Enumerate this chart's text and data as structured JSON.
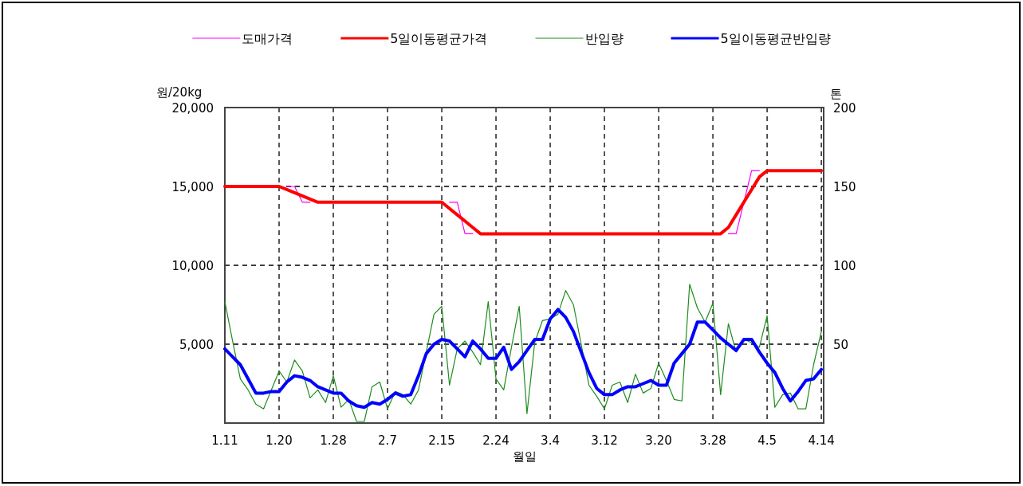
{
  "chart_data": {
    "type": "line",
    "xlabel": "월일",
    "ylabel": "원/20kg",
    "y2label": "톤",
    "categories": [
      "1.11",
      null,
      null,
      null,
      null,
      null,
      null,
      "1.20",
      null,
      null,
      null,
      null,
      null,
      null,
      "1.28",
      null,
      null,
      null,
      null,
      null,
      null,
      "2.7",
      null,
      null,
      null,
      null,
      null,
      null,
      "2.15",
      null,
      null,
      null,
      null,
      null,
      null,
      "2.24",
      null,
      null,
      null,
      null,
      null,
      null,
      "3.4",
      null,
      null,
      null,
      null,
      null,
      null,
      "3.12",
      null,
      null,
      null,
      null,
      null,
      null,
      "3.20",
      null,
      null,
      null,
      null,
      null,
      null,
      "3.28",
      null,
      null,
      null,
      null,
      null,
      null,
      "4.5",
      null,
      null,
      null,
      null,
      null,
      null,
      "4.14"
    ],
    "ylim": [
      0,
      20000
    ],
    "yticks": [
      {
        "value": 5000,
        "label": "5,000"
      },
      {
        "value": 10000,
        "label": "10,000"
      },
      {
        "value": 15000,
        "label": "15,000"
      },
      {
        "value": 20000,
        "label": "20,000"
      }
    ],
    "y2lim": [
      0,
      200
    ],
    "y2ticks": [
      50,
      100,
      150,
      200
    ],
    "grid": true,
    "legend": "top",
    "series": [
      {
        "name": "도매가격",
        "color": "#ff00ff",
        "values": [
          null,
          null,
          null,
          null,
          null,
          null,
          null,
          null,
          15000,
          15000,
          14000,
          14000,
          null,
          null,
          null,
          null,
          null,
          null,
          null,
          null,
          null,
          null,
          null,
          null,
          null,
          null,
          null,
          null,
          null,
          14000,
          14000,
          12000,
          12000,
          null,
          null,
          null,
          null,
          null,
          null,
          null,
          null,
          null,
          null,
          null,
          null,
          null,
          null,
          null,
          null,
          null,
          null,
          null,
          null,
          null,
          null,
          null,
          null,
          null,
          null,
          null,
          null,
          null,
          null,
          null,
          null,
          12000,
          12000,
          14000,
          16000,
          16000,
          null,
          null,
          null,
          null,
          null,
          null,
          null,
          null
        ]
      },
      {
        "name": "5일이동평균가격",
        "color": "#ff0000",
        "values": [
          15000,
          15000,
          15000,
          15000,
          15000,
          15000,
          15000,
          15000,
          14800,
          14600,
          14400,
          14200,
          14000,
          14000,
          14000,
          14000,
          14000,
          14000,
          14000,
          14000,
          14000,
          14000,
          14000,
          14000,
          14000,
          14000,
          14000,
          14000,
          14000,
          13600,
          13200,
          12800,
          12400,
          12000,
          12000,
          12000,
          12000,
          12000,
          12000,
          12000,
          12000,
          12000,
          12000,
          12000,
          12000,
          12000,
          12000,
          12000,
          12000,
          12000,
          12000,
          12000,
          12000,
          12000,
          12000,
          12000,
          12000,
          12000,
          12000,
          12000,
          12000,
          12000,
          12000,
          12000,
          12000,
          12400,
          13200,
          14000,
          14800,
          15600,
          16000,
          16000,
          16000,
          16000,
          16000,
          16000,
          16000,
          16000
        ]
      },
      {
        "name": "반입량",
        "color": "#1e8c1e",
        "axis": "y2",
        "values": [
          77,
          52,
          28,
          21,
          12,
          9,
          21,
          33,
          26,
          40,
          33,
          16,
          21,
          13,
          30,
          10,
          15,
          1,
          1,
          23,
          26,
          9,
          20,
          18,
          12,
          21,
          45,
          69,
          74,
          24,
          47,
          52,
          45,
          37,
          77,
          28,
          21,
          48,
          74,
          6,
          51,
          65,
          66,
          69,
          84,
          75,
          50,
          24,
          17,
          9,
          24,
          26,
          13,
          31,
          19,
          22,
          38,
          27,
          15,
          14,
          88,
          73,
          64,
          76,
          18,
          63,
          45,
          53,
          51,
          48,
          68,
          10,
          18,
          19,
          9,
          9,
          37,
          58
        ]
      },
      {
        "name": "5일이동평균반입량",
        "color": "#0000ff",
        "axis": "y2",
        "values": [
          47,
          42,
          37,
          28,
          19,
          19,
          20,
          20,
          26,
          30,
          29,
          27,
          23,
          21,
          19,
          19,
          14,
          11,
          10,
          13,
          12,
          15,
          19,
          17,
          18,
          30,
          44,
          50,
          53,
          52,
          47,
          42,
          52,
          47,
          41,
          41,
          48,
          34,
          39,
          46,
          53,
          53,
          66,
          72,
          67,
          58,
          45,
          32,
          22,
          18,
          18,
          21,
          23,
          23,
          25,
          27,
          24,
          24,
          38,
          44,
          50,
          64,
          64,
          59,
          54,
          50,
          46,
          53,
          53,
          45,
          38,
          32,
          22,
          14,
          20,
          27,
          28,
          34
        ]
      }
    ]
  }
}
